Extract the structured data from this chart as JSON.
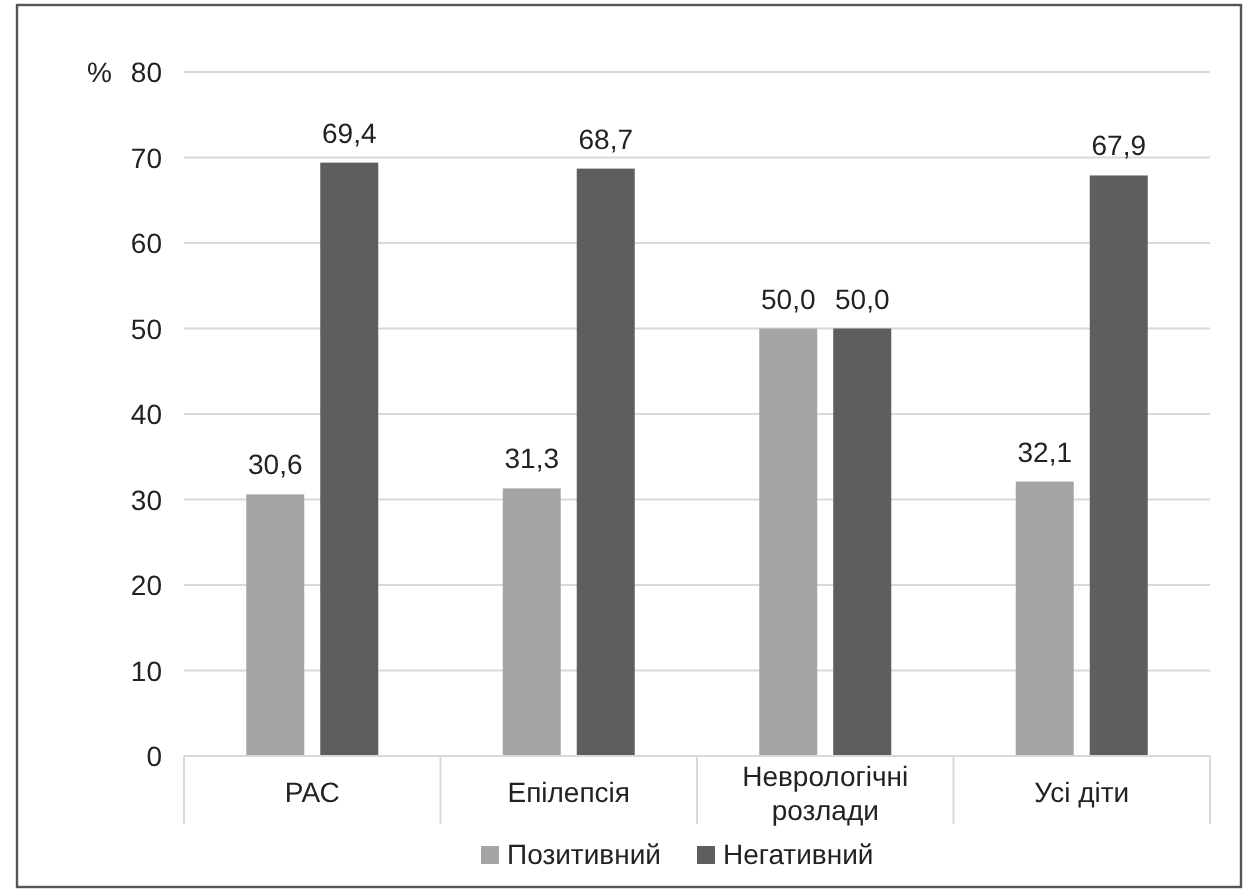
{
  "chart_data": {
    "type": "bar",
    "ylabel": "%",
    "categories": [
      "РАС",
      "Епілепсія",
      "Неврологічні розлади",
      "Усі діти"
    ],
    "series": [
      {
        "name": "Позитивний",
        "color": "#a5a5a5",
        "values": [
          30.6,
          31.3,
          50.0,
          32.1
        ],
        "value_labels": [
          "30,6",
          "31,3",
          "50,0",
          "32,1"
        ]
      },
      {
        "name": "Негативний",
        "color": "#5e5e5e",
        "values": [
          69.4,
          68.7,
          50.0,
          67.9
        ],
        "value_labels": [
          "69,4",
          "68,7",
          "50,0",
          "67,9"
        ]
      }
    ],
    "ylim": [
      0,
      80
    ],
    "yticks": [
      0,
      10,
      20,
      30,
      40,
      50,
      60,
      70,
      80
    ],
    "grid": "y",
    "legend": "bottom"
  }
}
